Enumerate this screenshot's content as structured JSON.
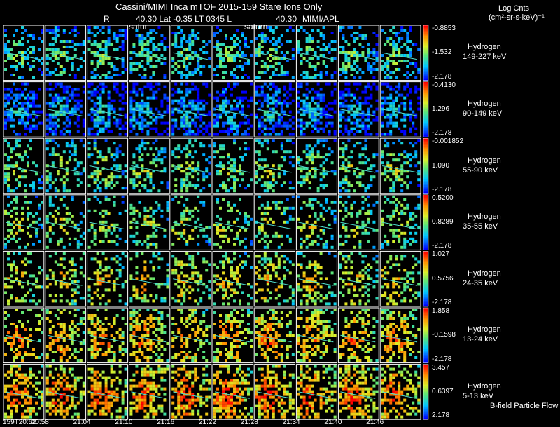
{
  "chart_data": {
    "type": "heatmap",
    "title": "Cassini/MIMI Inca mTOF  2015-159   Stare   Ions Only",
    "subtitle": {
      "r_label": "R",
      "position": "40.30 Lat -0.35 LT 0345 L",
      "l_value": "40.30",
      "credit": "MIMI/APL"
    },
    "saturn_labels": [
      "satur",
      "saturn"
    ],
    "colorbar_title": [
      "Log Cnts",
      "(cm²-sr-s-keV)⁻¹"
    ],
    "time_labels": [
      "159T20:52",
      "20:58",
      "21:04",
      "21:10",
      "21:16",
      "21:22",
      "21:28",
      "21:34",
      "21:40",
      "21:46"
    ],
    "footer_note": "B-field Particle Flow",
    "rows": [
      {
        "species": "Hydrogen",
        "energy": "149-227 keV",
        "scale_max": "-0.8853",
        "scale_mid": "-1.532",
        "scale_min": "-2.178",
        "density": 0.42,
        "level": 0.3
      },
      {
        "species": "Hydrogen",
        "energy": "90-149 keV",
        "scale_max": "-0.4130",
        "scale_mid": "1.296",
        "scale_min": "-2.178",
        "density": 0.55,
        "level": 0.12
      },
      {
        "species": "Hydrogen",
        "energy": "55-90 keV",
        "scale_max": "-0.001852",
        "scale_mid": "1.090",
        "scale_min": "-2.178",
        "density": 0.35,
        "level": 0.38
      },
      {
        "species": "Hydrogen",
        "energy": "35-55 keV",
        "scale_max": "0.5200",
        "scale_mid": "0.8289",
        "scale_min": "-2.178",
        "density": 0.3,
        "level": 0.45
      },
      {
        "species": "Hydrogen",
        "energy": "24-35 keV",
        "scale_max": "1.027",
        "scale_mid": "0.5756",
        "scale_min": "-2.178",
        "density": 0.32,
        "level": 0.55
      },
      {
        "species": "Hydrogen",
        "energy": "13-24 keV",
        "scale_max": "1.858",
        "scale_mid": "-0.1598",
        "scale_min": "-2.178",
        "density": 0.45,
        "level": 0.65
      },
      {
        "species": "Hydrogen",
        "energy": "5-13 keV",
        "scale_max": "3.457",
        "scale_mid": "0.6397",
        "scale_min": "2.178",
        "density": 0.55,
        "level": 0.72
      }
    ]
  }
}
